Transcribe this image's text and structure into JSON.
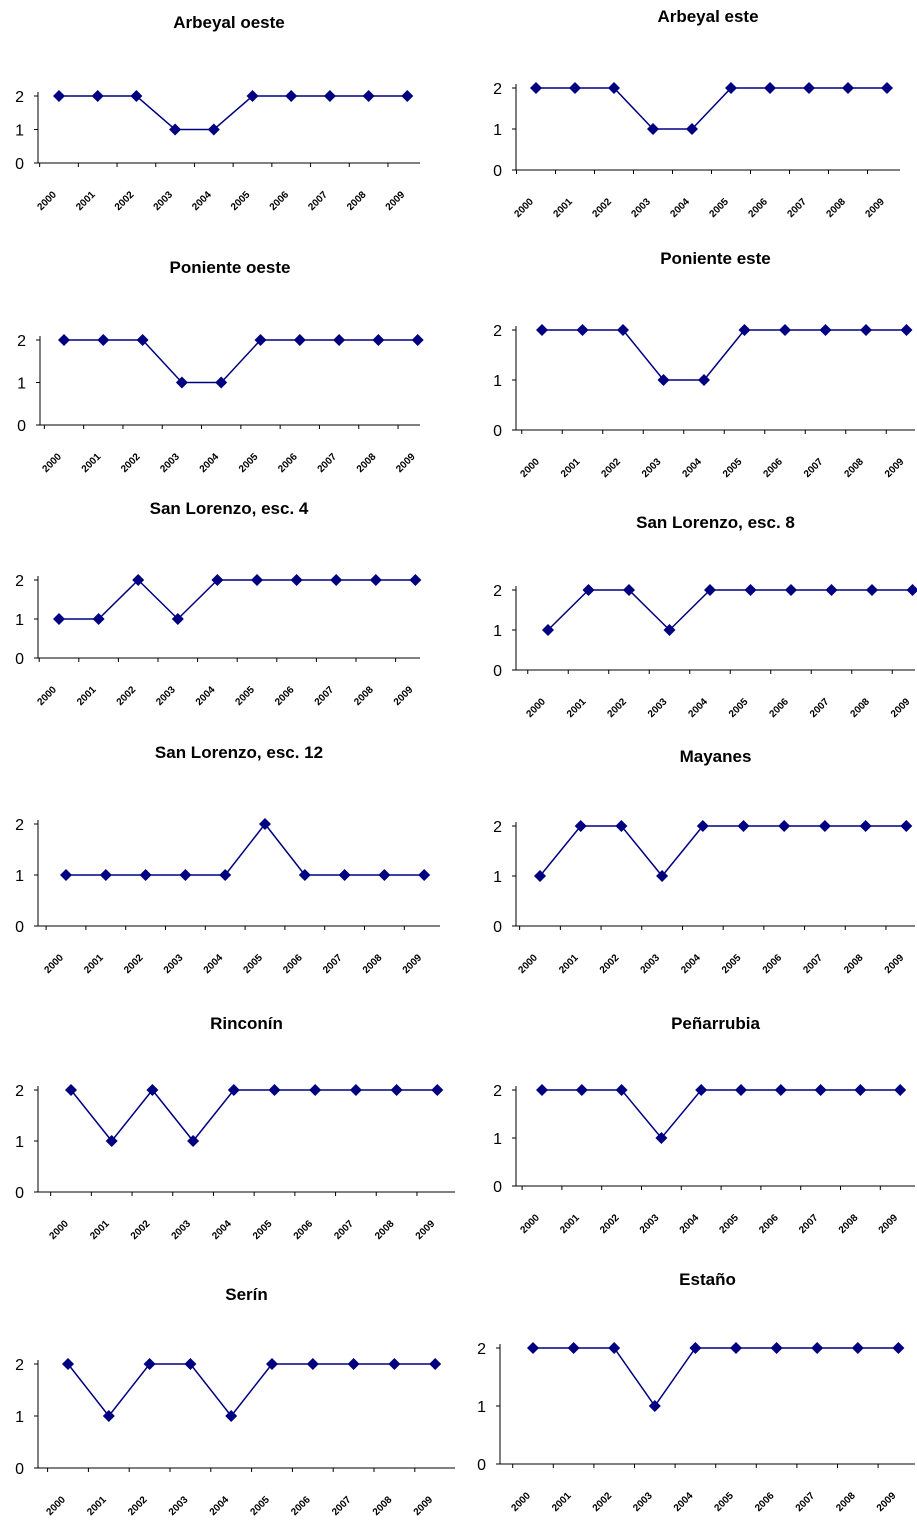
{
  "series_color": "#000080",
  "chart_data": [
    {
      "type": "line",
      "title": "Arbeyal oeste",
      "ylim": [
        0,
        2
      ],
      "yticks": [
        0,
        1,
        2
      ],
      "categories": [
        "2000",
        "2001",
        "2002",
        "2003",
        "2004",
        "2005",
        "2006",
        "2007",
        "2008",
        "2009"
      ],
      "series": [
        {
          "values": [
            2,
            2,
            2,
            1,
            1,
            2,
            2,
            2,
            2,
            2
          ]
        }
      ]
    },
    {
      "type": "line",
      "title": "Arbeyal este",
      "ylim": [
        0,
        2
      ],
      "yticks": [
        0,
        1,
        2
      ],
      "categories": [
        "2000",
        "2001",
        "2002",
        "2003",
        "2004",
        "2005",
        "2006",
        "2007",
        "2008",
        "2009"
      ],
      "series": [
        {
          "values": [
            2,
            2,
            2,
            1,
            1,
            2,
            2,
            2,
            2,
            2
          ]
        }
      ]
    },
    {
      "type": "line",
      "title": "Poniente oeste",
      "ylim": [
        0,
        2
      ],
      "yticks": [
        0,
        1,
        2
      ],
      "categories": [
        "2000",
        "2001",
        "2002",
        "2003",
        "2004",
        "2005",
        "2006",
        "2007",
        "2008",
        "2009"
      ],
      "series": [
        {
          "values": [
            2,
            2,
            2,
            1,
            1,
            2,
            2,
            2,
            2,
            2
          ]
        }
      ]
    },
    {
      "type": "line",
      "title": "Poniente este",
      "ylim": [
        0,
        2
      ],
      "yticks": [
        0,
        1,
        2
      ],
      "categories": [
        "2000",
        "2001",
        "2002",
        "2003",
        "2004",
        "2005",
        "2006",
        "2007",
        "2008",
        "2009"
      ],
      "series": [
        {
          "values": [
            2,
            2,
            2,
            1,
            1,
            2,
            2,
            2,
            2,
            2
          ]
        }
      ]
    },
    {
      "type": "line",
      "title": "San Lorenzo, esc. 4",
      "ylim": [
        0,
        2
      ],
      "yticks": [
        0,
        1,
        2
      ],
      "categories": [
        "2000",
        "2001",
        "2002",
        "2003",
        "2004",
        "2005",
        "2006",
        "2007",
        "2008",
        "2009"
      ],
      "series": [
        {
          "values": [
            1,
            1,
            2,
            1,
            2,
            2,
            2,
            2,
            2,
            2
          ]
        }
      ]
    },
    {
      "type": "line",
      "title": "San Lorenzo, esc. 8",
      "ylim": [
        0,
        2
      ],
      "yticks": [
        0,
        1,
        2
      ],
      "categories": [
        "2000",
        "2001",
        "2002",
        "2003",
        "2004",
        "2005",
        "2006",
        "2007",
        "2008",
        "2009"
      ],
      "series": [
        {
          "values": [
            1,
            2,
            2,
            1,
            2,
            2,
            2,
            2,
            2,
            2
          ]
        }
      ]
    },
    {
      "type": "line",
      "title": "San Lorenzo, esc. 12",
      "ylim": [
        0,
        2
      ],
      "yticks": [
        0,
        1,
        2
      ],
      "categories": [
        "2000",
        "2001",
        "2002",
        "2003",
        "2004",
        "2005",
        "2006",
        "2007",
        "2008",
        "2009"
      ],
      "series": [
        {
          "values": [
            1,
            1,
            1,
            1,
            1,
            2,
            1,
            1,
            1,
            1
          ]
        }
      ]
    },
    {
      "type": "line",
      "title": "Mayanes",
      "ylim": [
        0,
        2
      ],
      "yticks": [
        0,
        1,
        2
      ],
      "categories": [
        "2000",
        "2001",
        "2002",
        "2003",
        "2004",
        "2005",
        "2006",
        "2007",
        "2008",
        "2009"
      ],
      "series": [
        {
          "values": [
            1,
            2,
            2,
            1,
            2,
            2,
            2,
            2,
            2,
            2
          ]
        }
      ]
    },
    {
      "type": "line",
      "title": "Rinconín",
      "ylim": [
        0,
        2
      ],
      "yticks": [
        0,
        1,
        2
      ],
      "categories": [
        "2000",
        "2001",
        "2002",
        "2003",
        "2004",
        "2005",
        "2006",
        "2007",
        "2008",
        "2009"
      ],
      "series": [
        {
          "values": [
            2,
            1,
            2,
            1,
            2,
            2,
            2,
            2,
            2,
            2
          ]
        }
      ]
    },
    {
      "type": "line",
      "title": "Peñarrubia",
      "ylim": [
        0,
        2
      ],
      "yticks": [
        0,
        1,
        2
      ],
      "categories": [
        "2000",
        "2001",
        "2002",
        "2003",
        "2004",
        "2005",
        "2006",
        "2007",
        "2008",
        "2009"
      ],
      "series": [
        {
          "values": [
            2,
            2,
            2,
            1,
            2,
            2,
            2,
            2,
            2,
            2
          ]
        }
      ]
    },
    {
      "type": "line",
      "title": "Serín",
      "ylim": [
        0,
        2
      ],
      "yticks": [
        0,
        1,
        2
      ],
      "categories": [
        "2000",
        "2001",
        "2002",
        "2003",
        "2004",
        "2005",
        "2006",
        "2007",
        "2008",
        "2009"
      ],
      "series": [
        {
          "values": [
            2,
            1,
            2,
            2,
            1,
            2,
            2,
            2,
            2,
            2
          ]
        }
      ]
    },
    {
      "type": "line",
      "title": "Estaño",
      "ylim": [
        0,
        2
      ],
      "yticks": [
        0,
        1,
        2
      ],
      "categories": [
        "2000",
        "2001",
        "2002",
        "2003",
        "2004",
        "2005",
        "2006",
        "2007",
        "2008",
        "2009"
      ],
      "series": [
        {
          "values": [
            2,
            2,
            2,
            1,
            2,
            2,
            2,
            2,
            2,
            2
          ]
        }
      ]
    }
  ]
}
